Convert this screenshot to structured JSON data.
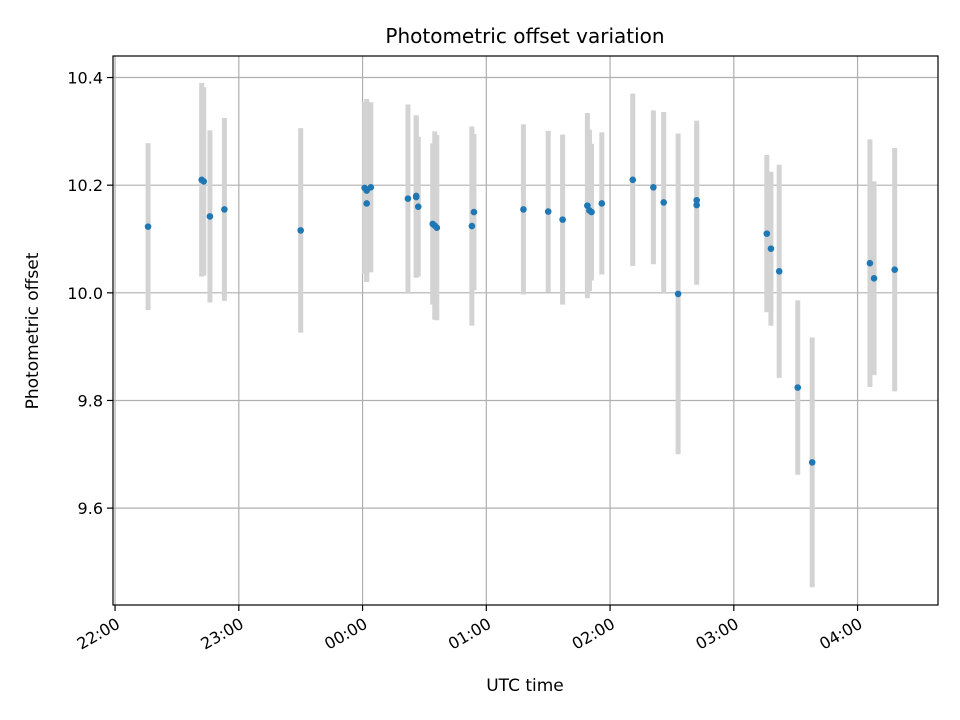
{
  "chart_data": {
    "type": "scatter",
    "title": "Photometric offset variation",
    "xlabel": "UTC time",
    "ylabel": "Photometric offset",
    "x_tick_labels": [
      "22:00",
      "23:00",
      "00:00",
      "01:00",
      "02:00",
      "03:00",
      "04:00"
    ],
    "y_tick_labels": [
      "9.6",
      "9.8",
      "10.0",
      "10.2",
      "10.4"
    ],
    "y_ticks": [
      9.6,
      9.8,
      10.0,
      10.2,
      10.4
    ],
    "xlim": [
      "21:59",
      "04:39"
    ],
    "ylim": [
      9.42,
      10.44
    ],
    "grid": true,
    "point_color": "#1f77b4",
    "errorbar_color": "#d3d3d3",
    "series": [
      {
        "points": [
          {
            "time": "22:16",
            "y": 10.123,
            "err": 0.155
          },
          {
            "time": "22:42",
            "y": 10.21,
            "err": 0.18
          },
          {
            "time": "22:43",
            "y": 10.207,
            "err": 0.175
          },
          {
            "time": "22:46",
            "y": 10.142,
            "err": 0.16
          },
          {
            "time": "22:53",
            "y": 10.155,
            "err": 0.17
          },
          {
            "time": "23:30",
            "y": 10.116,
            "err": 0.19
          },
          {
            "time": "00:01",
            "y": 10.195,
            "err": 0.16
          },
          {
            "time": "00:02",
            "y": 10.166,
            "err": 0.145
          },
          {
            "time": "00:02",
            "y": 10.19,
            "err": 0.17
          },
          {
            "time": "00:04",
            "y": 10.196,
            "err": 0.158
          },
          {
            "time": "00:22",
            "y": 10.175,
            "err": 0.175
          },
          {
            "time": "00:26",
            "y": 10.178,
            "err": 0.15
          },
          {
            "time": "00:26",
            "y": 10.18,
            "err": 0.15
          },
          {
            "time": "00:27",
            "y": 10.16,
            "err": 0.13
          },
          {
            "time": "00:34",
            "y": 10.128,
            "err": 0.15
          },
          {
            "time": "00:35",
            "y": 10.125,
            "err": 0.175
          },
          {
            "time": "00:36",
            "y": 10.121,
            "err": 0.172
          },
          {
            "time": "00:53",
            "y": 10.124,
            "err": 0.185
          },
          {
            "time": "00:54",
            "y": 10.15,
            "err": 0.145
          },
          {
            "time": "01:18",
            "y": 10.155,
            "err": 0.158
          },
          {
            "time": "01:30",
            "y": 10.151,
            "err": 0.15
          },
          {
            "time": "01:37",
            "y": 10.136,
            "err": 0.158
          },
          {
            "time": "01:49",
            "y": 10.162,
            "err": 0.172
          },
          {
            "time": "01:50",
            "y": 10.153,
            "err": 0.15
          },
          {
            "time": "01:51",
            "y": 10.15,
            "err": 0.127
          },
          {
            "time": "01:56",
            "y": 10.166,
            "err": 0.132
          },
          {
            "time": "02:11",
            "y": 10.21,
            "err": 0.16
          },
          {
            "time": "02:21",
            "y": 10.196,
            "err": 0.143
          },
          {
            "time": "02:26",
            "y": 10.168,
            "err": 0.168
          },
          {
            "time": "02:33",
            "y": 9.998,
            "err": 0.298
          },
          {
            "time": "02:42",
            "y": 10.163,
            "err": 0.148
          },
          {
            "time": "02:42",
            "y": 10.172,
            "err": 0.148
          },
          {
            "time": "03:16",
            "y": 10.11,
            "err": 0.146
          },
          {
            "time": "03:18",
            "y": 10.082,
            "err": 0.143
          },
          {
            "time": "03:22",
            "y": 10.04,
            "err": 0.198
          },
          {
            "time": "03:31",
            "y": 9.824,
            "err": 0.162
          },
          {
            "time": "03:38",
            "y": 9.685,
            "err": 0.232
          },
          {
            "time": "04:06",
            "y": 10.055,
            "err": 0.23
          },
          {
            "time": "04:08",
            "y": 10.027,
            "err": 0.18
          },
          {
            "time": "04:18",
            "y": 10.043,
            "err": 0.226
          }
        ]
      }
    ]
  }
}
